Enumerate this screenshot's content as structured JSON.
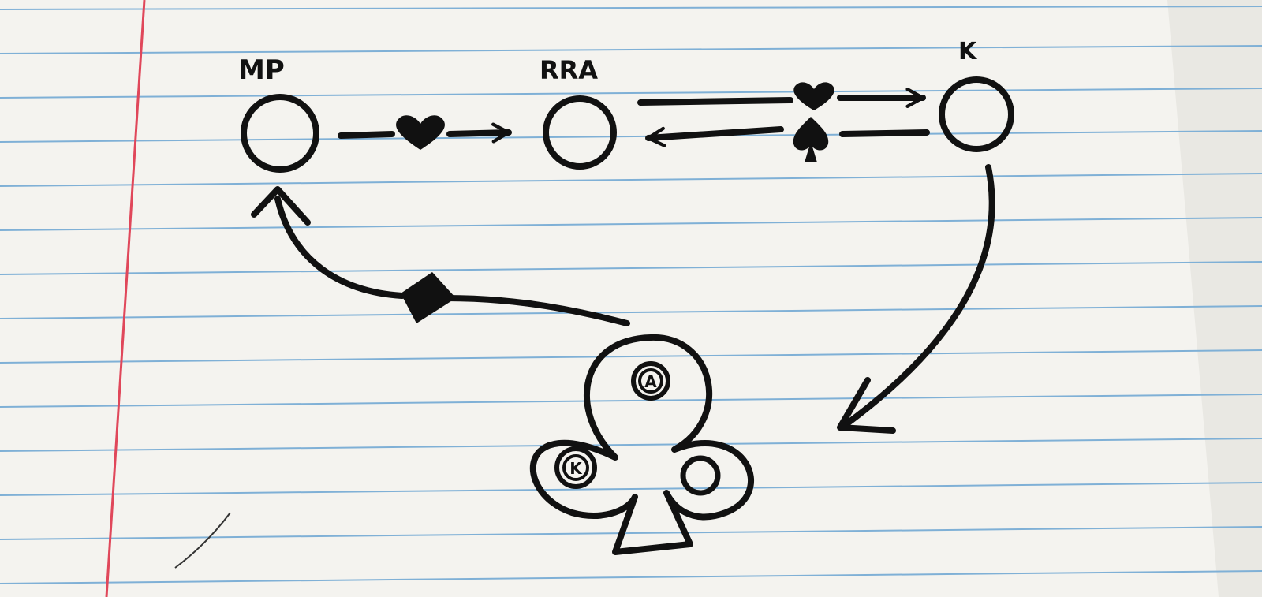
{
  "diagram": {
    "nodes": [
      {
        "id": "mp",
        "label": "MP"
      },
      {
        "id": "rra",
        "label": "RRA"
      },
      {
        "id": "k",
        "label": "K"
      }
    ],
    "edges": [
      {
        "from": "mp",
        "to": "rra",
        "symbol": "heart"
      },
      {
        "from": "rra",
        "to": "k",
        "symbol": "heart"
      },
      {
        "from": "k",
        "to": "rra",
        "symbol": "spade"
      },
      {
        "from": "k",
        "to": "club-hub",
        "symbol": "none"
      },
      {
        "from": "club-hub",
        "to": "mp",
        "symbol": "diamond"
      }
    ],
    "club_hub": {
      "circles": [
        {
          "position": "top",
          "label": "A"
        },
        {
          "position": "left",
          "label": "K"
        },
        {
          "position": "right",
          "label": ""
        }
      ]
    }
  },
  "colors": {
    "ink": "#111111",
    "paper": "#f4f3ef",
    "rule_line": "#7fb0d6",
    "margin_line": "#e0475a"
  }
}
